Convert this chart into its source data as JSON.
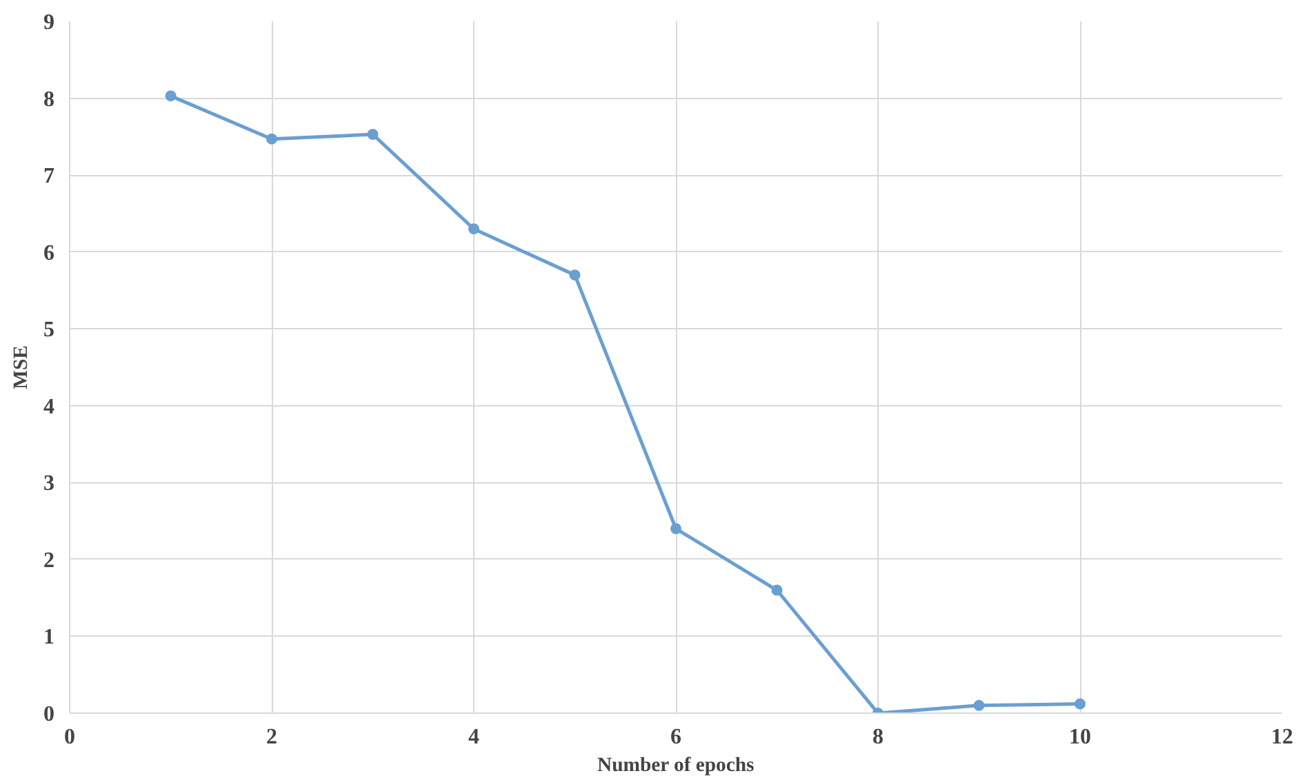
{
  "chart_data": {
    "type": "line",
    "xlabel": "Number of epochs",
    "ylabel": "MSE",
    "x": [
      1,
      2,
      3,
      4,
      5,
      6,
      7,
      8,
      9,
      10
    ],
    "series": [
      {
        "color": "#6a9fd2",
        "values": [
          8.03,
          7.47,
          7.53,
          6.3,
          5.7,
          2.4,
          1.6,
          0.0,
          0.1,
          0.12
        ]
      }
    ],
    "xlim": [
      0,
      12
    ],
    "xticks": [
      0,
      2,
      4,
      6,
      8,
      10,
      12
    ],
    "ylim": [
      0,
      9
    ],
    "yticks": [
      0,
      1,
      2,
      3,
      4,
      5,
      6,
      7,
      8,
      9
    ],
    "grid": true,
    "marker": "circle",
    "line_style": "solid"
  }
}
